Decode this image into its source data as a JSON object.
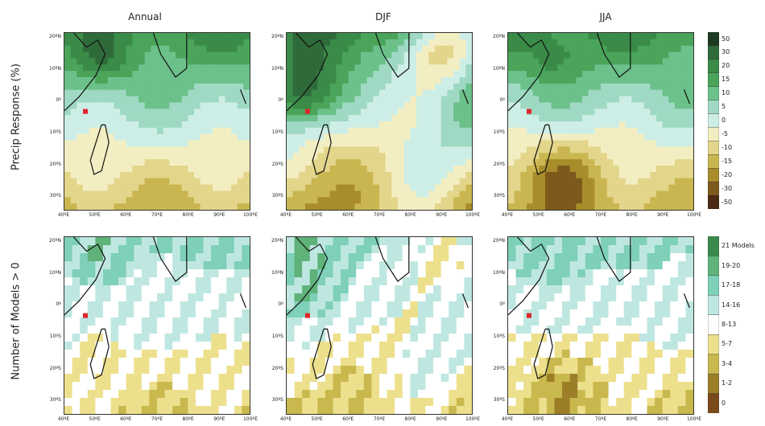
{
  "columns": [
    "Annual",
    "DJF",
    "JJA"
  ],
  "rows": [
    "Precip Response (%)",
    "Number of Models > 0"
  ],
  "lon_ticks": [
    "40ºE",
    "50ºE",
    "60ºE",
    "70ºE",
    "80ºE",
    "90ºE",
    "100ºE"
  ],
  "lat_ticks": [
    "20ºN",
    "10ºN",
    "0º",
    "10ºS",
    "20ºS",
    "30ºS"
  ],
  "colorbar_top": {
    "labels": [
      "50",
      "30",
      "20",
      "15",
      "10",
      "5",
      "0",
      "-5",
      "-10",
      "-15",
      "-20",
      "-30",
      "-50"
    ],
    "colors": [
      "#1d3b22",
      "#2f6a3a",
      "#3a8a48",
      "#4aa45a",
      "#6cc08a",
      "#9fd9c3",
      "#cdeee6",
      "#f3eec2",
      "#e3d58a",
      "#c9b650",
      "#a88d2a",
      "#7d5a1c",
      "#4a2a12"
    ]
  },
  "colorbar_bottom": {
    "labels": [
      "21 Models",
      "19-20",
      "17-18",
      "14-16",
      "8-13",
      "5-7",
      "3-4",
      "1-2",
      "0"
    ],
    "colors": [
      "#3b8a4c",
      "#5fb27a",
      "#7ed0b8",
      "#bfe7e1",
      "#ffffff",
      "#ede08c",
      "#c9b84e",
      "#9c7e28",
      "#7a4a1c"
    ]
  },
  "marker_color": "#e0262b"
}
